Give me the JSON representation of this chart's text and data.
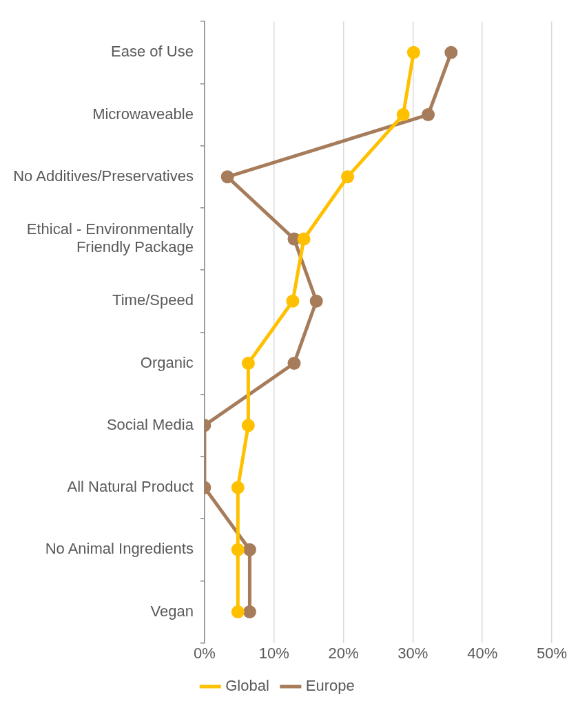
{
  "chart_data": {
    "type": "line",
    "orientation": "horizontal",
    "categories": [
      "Ease of Use",
      "Microwaveable",
      "No Additives/Preservatives",
      "Ethical - Environmentally Friendly Package",
      "Time/Speed",
      "Organic",
      "Social Media",
      "All Natural Product",
      "No Animal Ingredients",
      "Vegan"
    ],
    "series": [
      {
        "name": "Global",
        "color": "#ffc000",
        "values": [
          30.1,
          28.6,
          20.6,
          14.3,
          12.7,
          6.3,
          6.3,
          4.8,
          4.8,
          4.8
        ]
      },
      {
        "name": "Europe",
        "color": "#a67c5b",
        "values": [
          35.5,
          32.2,
          3.3,
          12.9,
          16.1,
          12.9,
          0,
          0,
          6.5,
          6.5
        ]
      }
    ],
    "xlim": [
      0,
      50
    ],
    "xticks": [
      {
        "value": 0,
        "label": "0%"
      },
      {
        "value": 10,
        "label": "10%"
      },
      {
        "value": 20,
        "label": "20%"
      },
      {
        "value": 30,
        "label": "30%"
      },
      {
        "value": 40,
        "label": "40%"
      },
      {
        "value": 50,
        "label": "50%"
      }
    ],
    "grid": "x",
    "legend": "bottom",
    "marker": "circle",
    "line_style": "solid"
  }
}
